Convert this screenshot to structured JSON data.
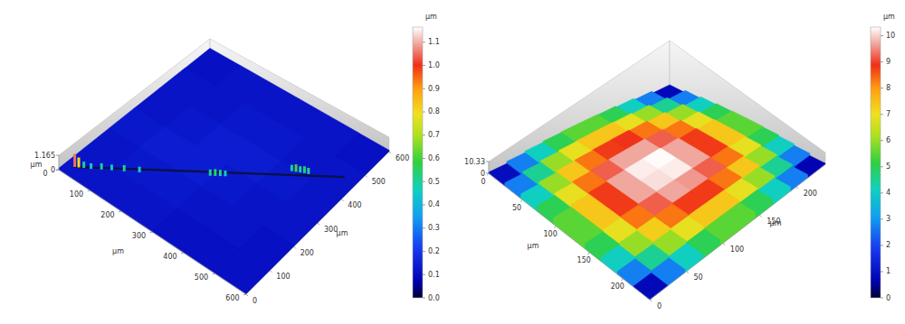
{
  "chart_data": [
    {
      "type": "surface",
      "x": [
        50,
        150,
        250,
        350,
        450,
        550
      ],
      "y": [
        50,
        150,
        250,
        350,
        450,
        550
      ],
      "z": [
        [
          0.12,
          0.12,
          0.13,
          0.12,
          0.12,
          0.11
        ],
        [
          0.12,
          0.13,
          0.14,
          0.13,
          0.12,
          0.12
        ],
        [
          0.12,
          0.13,
          0.14,
          0.14,
          0.13,
          0.12
        ],
        [
          0.11,
          0.12,
          0.13,
          0.14,
          0.13,
          0.12
        ],
        [
          0.11,
          0.12,
          0.12,
          0.13,
          0.12,
          0.12
        ],
        [
          0.11,
          0.11,
          0.12,
          0.12,
          0.12,
          0.11
        ]
      ],
      "line": {
        "x": [
          20,
          560
        ],
        "y": [
          35,
          463
        ]
      },
      "points": {
        "x": [
          22,
          30,
          40,
          55,
          75,
          95,
          120,
          150,
          290,
          300,
          310,
          320,
          440,
          450,
          460,
          470,
          480
        ],
        "y": [
          36,
          42,
          50,
          60,
          77,
          93,
          112,
          136,
          248,
          256,
          264,
          272,
          395,
          400,
          405,
          410,
          414
        ],
        "z": [
          1.05,
          0.8,
          0.5,
          0.45,
          0.5,
          0.45,
          0.5,
          0.45,
          0.5,
          0.55,
          0.5,
          0.45,
          0.5,
          0.6,
          0.5,
          0.55,
          0.5
        ]
      },
      "xlim": [
        0,
        600
      ],
      "xticks": [
        0,
        100,
        200,
        300,
        400,
        500,
        600
      ],
      "ylim": [
        0,
        600
      ],
      "yticks": [
        0,
        100,
        200,
        300,
        400,
        500,
        600
      ],
      "zlim": [
        0,
        1.165
      ],
      "zticks": [
        0,
        1.165
      ],
      "xlabel": "µm",
      "ylabel": "µm",
      "zlabel": "µm",
      "colorbar": {
        "label": "µm",
        "range": [
          0,
          1.165
        ],
        "ticks": [
          {
            "value": 0,
            "label": "0.0"
          },
          0.1,
          0.2,
          0.3,
          0.4,
          0.5,
          0.6,
          0.7,
          0.8,
          0.9,
          {
            "value": 1,
            "label": "1.0"
          },
          1.1
        ]
      }
    },
    {
      "type": "surface",
      "x": [
        12,
        36,
        60,
        84,
        108,
        132,
        156,
        180,
        204,
        228
      ],
      "y": [
        12,
        36,
        60,
        84,
        108,
        132,
        156,
        180,
        204,
        228
      ],
      "z": [
        [
          0.9,
          2.7,
          4.1,
          5.0,
          5.5,
          5.5,
          5.0,
          4.1,
          2.7,
          0.8
        ],
        [
          2.7,
          4.5,
          6.0,
          6.9,
          7.4,
          7.4,
          6.9,
          6.0,
          4.5,
          2.7
        ],
        [
          4.1,
          6.0,
          7.4,
          8.3,
          8.8,
          8.9,
          8.3,
          7.4,
          6.0,
          4.1
        ],
        [
          5.0,
          6.9,
          8.3,
          9.2,
          9.7,
          9.7,
          9.2,
          8.3,
          6.9,
          5.0
        ],
        [
          5.5,
          7.4,
          8.8,
          9.7,
          10.2,
          10.3,
          9.7,
          8.8,
          7.4,
          5.5
        ],
        [
          5.5,
          7.4,
          8.8,
          9.7,
          10.1,
          10.2,
          9.7,
          8.8,
          7.4,
          5.5
        ],
        [
          5.0,
          6.9,
          8.3,
          9.2,
          9.7,
          9.6,
          9.2,
          8.3,
          6.9,
          5.0
        ],
        [
          4.1,
          6.0,
          7.3,
          8.3,
          8.8,
          8.8,
          8.3,
          7.4,
          6.0,
          4.1
        ],
        [
          2.7,
          4.5,
          6.0,
          6.9,
          7.4,
          7.4,
          6.9,
          6.0,
          4.5,
          2.7
        ],
        [
          0.8,
          2.7,
          4.1,
          5.0,
          5.5,
          5.5,
          5.0,
          4.1,
          2.7,
          0.7
        ]
      ],
      "xlim": [
        0,
        240
      ],
      "xticks": [
        0,
        50,
        100,
        150,
        200
      ],
      "ylim": [
        0,
        240
      ],
      "yticks": [
        0,
        50,
        100,
        150,
        200
      ],
      "zlim": [
        0,
        10.33
      ],
      "zticks": [
        0,
        10.33
      ],
      "xlabel": "µm",
      "ylabel": "µm",
      "colorbar": {
        "label": "µm",
        "range": [
          0,
          10.33
        ],
        "ticks": [
          0,
          1,
          2,
          3,
          4,
          5,
          6,
          7,
          8,
          9,
          10
        ]
      }
    }
  ]
}
